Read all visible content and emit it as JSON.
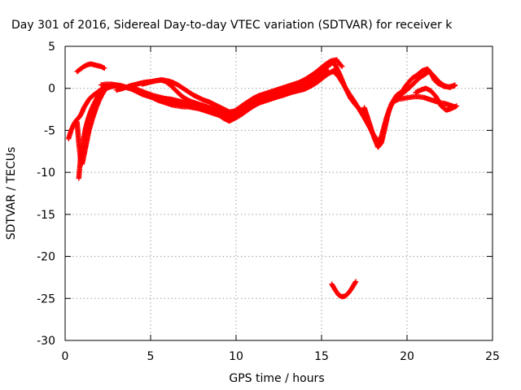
{
  "chart_data": {
    "type": "scatter",
    "title": "Day 301 of 2016, Sidereal Day-to-day VTEC variation (SDTVAR) for receiver k",
    "xlabel": "GPS time / hours",
    "ylabel": "SDTVAR / TECUs",
    "xlim": [
      0,
      25
    ],
    "ylim": [
      -30,
      5
    ],
    "xticks": [
      0,
      5,
      10,
      15,
      20,
      25
    ],
    "yticks": [
      5,
      0,
      -5,
      -10,
      -15,
      -20,
      -25,
      -30
    ],
    "grid": true,
    "marker": "plus",
    "color": "#ff0000",
    "series": [
      {
        "x": [
          0.2,
          0.35,
          0.5,
          0.65,
          0.8,
          0.9,
          1.0,
          1.1,
          1.25,
          1.4,
          1.6,
          1.8,
          2.0,
          2.2,
          2.5,
          2.8,
          3.1,
          3.4,
          3.7,
          4.0,
          4.3,
          4.6,
          5.0,
          5.4,
          5.8,
          6.2,
          6.6,
          7.0,
          7.4,
          7.8,
          8.2,
          8.6,
          9.0,
          9.3,
          9.6,
          9.9,
          10.2,
          10.5,
          10.8,
          11.1,
          11.4,
          11.7,
          12.0,
          12.3,
          12.6,
          12.9,
          13.2,
          13.5,
          13.8,
          14.1,
          14.4,
          14.7,
          15.0,
          15.2,
          15.4
        ],
        "y": [
          -6.0,
          -5.0,
          -4.3,
          -3.8,
          -3.5,
          -3.2,
          -2.8,
          -2.3,
          -1.8,
          -1.3,
          -0.9,
          -0.6,
          -0.3,
          0.0,
          0.2,
          0.3,
          0.3,
          0.2,
          0.1,
          0.0,
          -0.2,
          -0.5,
          -0.8,
          -1.0,
          -1.2,
          -1.3,
          -1.5,
          -1.7,
          -2.0,
          -2.2,
          -2.5,
          -2.8,
          -3.0,
          -3.2,
          -3.3,
          -3.0,
          -2.6,
          -2.2,
          -1.9,
          -1.6,
          -1.4,
          -1.2,
          -1.0,
          -0.8,
          -0.6,
          -0.4,
          -0.3,
          -0.2,
          0.0,
          0.3,
          0.6,
          1.0,
          1.5,
          1.8,
          2.0
        ]
      },
      {
        "x": [
          0.8,
          0.85,
          0.9,
          1.0,
          1.1,
          1.2,
          1.35,
          1.5,
          1.7,
          1.9,
          2.1,
          2.4,
          2.7,
          3.0,
          3.4,
          3.8,
          4.2,
          4.6,
          5.0,
          5.4,
          5.8,
          6.2,
          6.6,
          7.0,
          7.4,
          7.8,
          8.2,
          8.6,
          9.0,
          9.3,
          9.6,
          9.9,
          10.2,
          10.5,
          10.8,
          11.1,
          11.4,
          11.7,
          12.0,
          12.3,
          12.6,
          12.9,
          13.2,
          13.5,
          13.8,
          14.1,
          14.4,
          14.7,
          15.0,
          15.3,
          15.6,
          15.8
        ],
        "y": [
          -10.7,
          -9.5,
          -8.3,
          -7.0,
          -5.8,
          -4.7,
          -3.6,
          -2.7,
          -1.8,
          -1.0,
          -0.4,
          0.0,
          0.2,
          0.3,
          0.2,
          0.0,
          -0.3,
          -0.6,
          -0.9,
          -1.2,
          -1.5,
          -1.7,
          -1.9,
          -2.0,
          -2.2,
          -2.4,
          -2.6,
          -2.8,
          -3.2,
          -3.6,
          -3.9,
          -3.6,
          -3.1,
          -2.6,
          -2.2,
          -1.9,
          -1.7,
          -1.5,
          -1.3,
          -1.1,
          -0.9,
          -0.7,
          -0.5,
          -0.3,
          -0.1,
          0.1,
          0.4,
          0.8,
          1.2,
          1.6,
          2.0,
          2.2
        ]
      },
      {
        "x": [
          0.7,
          0.8,
          0.9,
          1.0,
          1.2,
          1.4,
          1.6,
          1.8,
          2.0,
          2.2,
          2.4,
          2.6,
          2.8,
          3.0,
          3.3,
          3.6,
          4.0,
          4.4,
          4.8,
          5.2,
          5.6,
          6.0,
          6.4,
          6.8,
          7.2,
          7.6,
          8.0,
          8.4,
          8.8,
          9.2,
          9.6,
          10.0,
          10.4,
          10.8,
          11.2,
          11.6,
          12.0,
          12.4,
          12.8,
          13.2,
          13.6,
          14.0,
          14.4,
          14.8,
          15.1,
          15.4,
          15.7,
          16.0,
          16.3,
          16.6,
          16.9,
          17.2,
          17.5,
          17.8,
          18.0,
          18.2,
          18.4,
          18.6,
          18.8,
          19.0,
          19.2,
          19.5,
          19.8,
          20.1,
          20.4,
          20.7,
          21.0,
          21.3,
          21.6,
          21.9,
          22.2,
          22.5,
          22.8
        ],
        "y": [
          -4.0,
          -6.5,
          -8.5,
          -9.0,
          -7.0,
          -5.0,
          -3.6,
          -2.4,
          -1.4,
          -0.6,
          0.0,
          0.3,
          0.4,
          0.4,
          0.3,
          0.1,
          -0.1,
          -0.3,
          -0.6,
          -0.9,
          -1.1,
          -1.3,
          -1.5,
          -1.7,
          -1.9,
          -2.1,
          -2.3,
          -2.5,
          -2.8,
          -3.1,
          -3.4,
          -3.5,
          -3.0,
          -2.4,
          -1.9,
          -1.5,
          -1.2,
          -1.0,
          -0.8,
          -0.5,
          -0.3,
          -0.1,
          0.3,
          0.8,
          1.3,
          1.8,
          2.0,
          1.4,
          0.4,
          -0.6,
          -1.5,
          -2.5,
          -3.5,
          -4.6,
          -5.4,
          -6.0,
          -6.4,
          -5.0,
          -3.5,
          -2.3,
          -1.6,
          -1.3,
          -1.2,
          -1.1,
          -1.0,
          -1.0,
          -1.1,
          -1.3,
          -1.5,
          -1.7,
          -1.8,
          -2.0,
          -2.2
        ]
      },
      {
        "x": [
          0.7,
          0.9,
          1.1,
          1.3,
          1.5,
          1.7,
          1.9,
          2.1,
          2.3
        ],
        "y": [
          2.0,
          2.3,
          2.6,
          2.8,
          2.9,
          2.8,
          2.7,
          2.6,
          2.4
        ]
      },
      {
        "x": [
          2.1,
          2.4,
          2.7,
          3.0,
          3.3,
          3.6,
          3.9,
          4.2,
          4.5,
          4.8,
          5.1,
          5.4,
          5.7,
          6.0,
          6.3,
          6.6,
          6.9,
          7.2,
          7.5,
          7.8,
          8.1,
          8.4,
          8.7,
          9.0,
          9.3,
          9.6,
          9.9,
          10.2,
          10.5,
          10.8,
          11.1,
          11.4,
          11.7,
          12.0,
          12.3,
          12.6,
          12.9,
          13.2,
          13.5,
          13.8,
          14.1,
          14.4,
          14.7,
          15.0,
          15.3,
          15.6,
          15.9,
          16.2
        ],
        "y": [
          0.4,
          0.5,
          0.5,
          0.4,
          0.3,
          0.1,
          -0.1,
          -0.4,
          -0.7,
          -0.9,
          -1.1,
          -1.4,
          -1.6,
          -1.8,
          -2.0,
          -2.1,
          -2.2,
          -2.2,
          -2.3,
          -2.4,
          -2.6,
          -2.8,
          -3.0,
          -3.2,
          -3.4,
          -3.5,
          -3.3,
          -2.8,
          -2.3,
          -1.8,
          -1.4,
          -1.1,
          -0.9,
          -0.7,
          -0.5,
          -0.4,
          -0.3,
          -0.1,
          0.1,
          0.3,
          0.6,
          1.0,
          1.4,
          1.9,
          2.5,
          3.0,
          3.3,
          2.6
        ]
      },
      {
        "x": [
          3.0,
          3.4,
          3.8,
          4.2,
          4.6,
          5.0,
          5.3,
          5.6,
          5.9,
          6.2,
          6.5,
          6.8,
          7.1,
          7.4,
          7.7,
          8.0,
          8.3,
          8.6,
          8.9,
          9.2,
          9.5,
          9.8,
          10.1,
          10.4,
          10.7,
          11.0,
          11.3,
          11.6,
          11.9,
          12.2,
          12.5,
          12.8,
          13.1,
          13.4,
          13.7,
          14.0,
          14.3,
          14.6,
          14.9,
          15.2,
          15.5,
          15.8,
          16.1,
          16.4,
          16.7,
          17.0,
          17.3,
          17.6
        ],
        "y": [
          -0.2,
          0.0,
          0.3,
          0.5,
          0.7,
          0.8,
          0.9,
          1.0,
          0.8,
          0.3,
          -0.3,
          -0.9,
          -1.3,
          -1.6,
          -1.8,
          -2.0,
          -2.2,
          -2.4,
          -2.6,
          -2.8,
          -3.0,
          -2.9,
          -2.5,
          -2.0,
          -1.6,
          -1.2,
          -0.9,
          -0.7,
          -0.5,
          -0.3,
          -0.1,
          0.1,
          0.3,
          0.5,
          0.7,
          1.0,
          1.4,
          1.8,
          2.3,
          2.8,
          3.2,
          2.8,
          1.5,
          0.0,
          -1.2,
          -2.0,
          -2.6,
          -3.2
        ]
      },
      {
        "x": [
          4.5,
          4.9,
          5.3,
          5.7,
          6.0,
          6.3,
          6.6,
          6.9,
          7.2,
          7.5,
          7.8,
          8.1,
          8.4,
          8.7,
          9.0,
          9.3,
          9.6,
          9.9,
          10.2,
          10.5,
          10.8,
          11.1,
          11.4,
          11.7,
          12.0,
          12.3,
          12.6,
          12.9,
          13.2,
          13.5,
          13.8,
          14.1,
          14.4,
          14.7,
          15.0,
          15.3,
          15.6,
          15.9
        ],
        "y": [
          0.5,
          0.7,
          0.9,
          1.0,
          0.9,
          0.7,
          0.4,
          0.0,
          -0.4,
          -0.8,
          -1.1,
          -1.4,
          -1.6,
          -1.9,
          -2.2,
          -2.5,
          -2.8,
          -2.7,
          -2.3,
          -1.9,
          -1.5,
          -1.2,
          -1.0,
          -0.8,
          -0.6,
          -0.4,
          -0.2,
          0.0,
          0.2,
          0.5,
          0.8,
          1.1,
          1.5,
          1.9,
          2.4,
          2.9,
          3.3,
          3.4
        ]
      },
      {
        "x": [
          15.6,
          15.8,
          16.0,
          16.2,
          16.4,
          16.6,
          16.8,
          17.0
        ],
        "y": [
          -23.3,
          -24.0,
          -24.6,
          -24.8,
          -24.7,
          -24.3,
          -23.7,
          -23.0
        ]
      },
      {
        "x": [
          17.5,
          17.7,
          17.9,
          18.1,
          18.3,
          18.5,
          18.7,
          18.9,
          19.1,
          19.4,
          19.7,
          20.0,
          20.3,
          20.6,
          20.9,
          21.2,
          21.4,
          21.6,
          21.8,
          22.0,
          22.2,
          22.5,
          22.8
        ],
        "y": [
          -2.3,
          -3.5,
          -4.8,
          -6.0,
          -7.0,
          -6.5,
          -4.8,
          -3.0,
          -1.8,
          -0.8,
          -0.4,
          0.5,
          1.2,
          1.6,
          2.1,
          2.3,
          1.8,
          1.0,
          0.6,
          0.4,
          0.2,
          0.2,
          0.3
        ]
      },
      {
        "x": [
          19.5,
          19.8,
          20.1,
          20.4,
          20.7,
          21.0,
          21.3,
          21.6,
          21.9,
          22.2,
          22.5,
          22.8
        ],
        "y": [
          -1.0,
          -0.5,
          0.0,
          0.6,
          1.2,
          1.6,
          2.0,
          1.4,
          0.7,
          0.3,
          0.1,
          0.4
        ]
      },
      {
        "x": [
          20.5,
          20.8,
          21.1,
          21.4,
          21.7,
          22.0,
          22.3,
          22.6,
          22.9
        ],
        "y": [
          -0.5,
          -0.2,
          0.0,
          -0.3,
          -1.0,
          -2.1,
          -2.6,
          -2.4,
          -2.1
        ]
      }
    ]
  }
}
